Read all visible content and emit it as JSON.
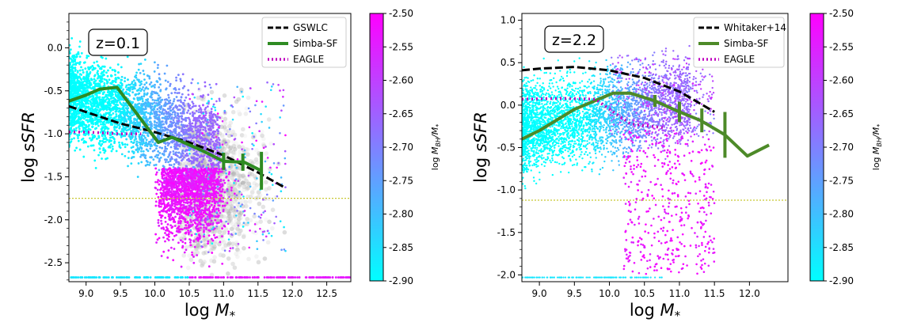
{
  "chart_data": [
    {
      "type": "scatter",
      "panel_label": "z=0.1",
      "xlabel": "log M*",
      "ylabel": "log sSFR",
      "xlim": [
        8.75,
        12.85
      ],
      "ylim": [
        -2.72,
        0.4
      ],
      "xticks": [
        "9.0",
        "9.5",
        "10.0",
        "10.5",
        "11.0",
        "11.5",
        "12.0",
        "12.5"
      ],
      "yticks": [
        "0.0",
        "-0.5",
        "-1.0",
        "-1.5",
        "-2.0",
        "-2.5"
      ],
      "threshold_y": -1.75,
      "floor_y": -2.67,
      "colorbar": {
        "label": "log M_BH/M*",
        "min": -2.9,
        "max": -2.5,
        "ticks": [
          "-2.50",
          "-2.55",
          "-2.60",
          "-2.65",
          "-2.70",
          "-2.75",
          "-2.80",
          "-2.85",
          "-2.90"
        ]
      },
      "legend": [
        "GSWLC",
        "Simba-SF",
        "EAGLE"
      ],
      "series": [
        {
          "name": "GSWLC",
          "style": "dashed",
          "color": "#000000",
          "x": [
            8.75,
            9.5,
            10.0,
            10.5,
            11.0,
            11.5,
            11.9
          ],
          "y": [
            -0.68,
            -0.88,
            -0.98,
            -1.1,
            -1.25,
            -1.45,
            -1.63
          ]
        },
        {
          "name": "Simba-SF",
          "style": "solid",
          "color": "#2e8b22",
          "x": [
            8.75,
            9.0,
            9.2,
            9.45,
            10.05,
            10.25,
            10.7,
            11.0,
            11.3,
            11.55
          ],
          "y": [
            -0.62,
            -0.55,
            -0.48,
            -0.46,
            -1.1,
            -1.04,
            -1.2,
            -1.32,
            -1.33,
            -1.43
          ],
          "errorbars": [
            {
              "x": 11.0,
              "y": -1.32,
              "err": 0.1
            },
            {
              "x": 11.28,
              "y": -1.33,
              "err": 0.1
            },
            {
              "x": 11.55,
              "y": -1.43,
              "err": 0.22
            }
          ]
        },
        {
          "name": "EAGLE",
          "style": "dotted",
          "color": "#c000c0",
          "x": [
            8.75,
            9.0,
            9.5,
            9.8
          ],
          "y": [
            -0.98,
            -0.98,
            -1.0,
            -1.0
          ]
        }
      ]
    },
    {
      "type": "scatter",
      "panel_label": "z=2.2",
      "xlabel": "log M*",
      "ylabel": "log sSFR",
      "xlim": [
        8.75,
        12.55
      ],
      "ylim": [
        -2.08,
        1.08
      ],
      "xticks": [
        "9.0",
        "9.5",
        "10.0",
        "10.5",
        "11.0",
        "11.5",
        "12.0"
      ],
      "yticks": [
        "1.0",
        "0.5",
        "0.0",
        "-0.5",
        "-1.0",
        "-1.5",
        "-2.0"
      ],
      "threshold_y": -1.12,
      "floor_y": -2.03,
      "colorbar": {
        "label": "log M_BH/M*",
        "min": -2.9,
        "max": -2.5,
        "ticks": [
          "-2.50",
          "-2.55",
          "-2.60",
          "-2.65",
          "-2.70",
          "-2.75",
          "-2.80",
          "-2.85",
          "-2.90"
        ]
      },
      "legend": [
        "Whitaker+14",
        "Simba-SF",
        "EAGLE"
      ],
      "series": [
        {
          "name": "Whitaker+14",
          "style": "dashed",
          "color": "#000000",
          "x": [
            8.75,
            9.0,
            9.5,
            10.0,
            10.5,
            11.0,
            11.5
          ],
          "y": [
            0.41,
            0.43,
            0.45,
            0.41,
            0.32,
            0.16,
            -0.08
          ]
        },
        {
          "name": "Simba-SF",
          "style": "solid",
          "color": "#4d8a28",
          "x": [
            8.75,
            9.0,
            9.5,
            10.05,
            10.3,
            10.65,
            11.0,
            11.3,
            11.65,
            11.97,
            12.28
          ],
          "y": [
            -0.4,
            -0.3,
            -0.05,
            0.14,
            0.14,
            0.05,
            -0.08,
            -0.18,
            -0.35,
            -0.6,
            -0.47
          ],
          "errorbars": [
            {
              "x": 10.65,
              "y": 0.05,
              "err": 0.07
            },
            {
              "x": 11.0,
              "y": -0.08,
              "err": 0.12
            },
            {
              "x": 11.32,
              "y": -0.18,
              "err": 0.14
            },
            {
              "x": 11.65,
              "y": -0.35,
              "err": 0.27
            }
          ]
        },
        {
          "name": "EAGLE",
          "style": "dotted",
          "color": "#c000c0",
          "x": [
            8.75,
            9.3,
            9.8,
            10.3,
            10.8
          ],
          "y": [
            0.07,
            0.08,
            0.07,
            -0.22,
            -0.27
          ]
        }
      ]
    }
  ]
}
